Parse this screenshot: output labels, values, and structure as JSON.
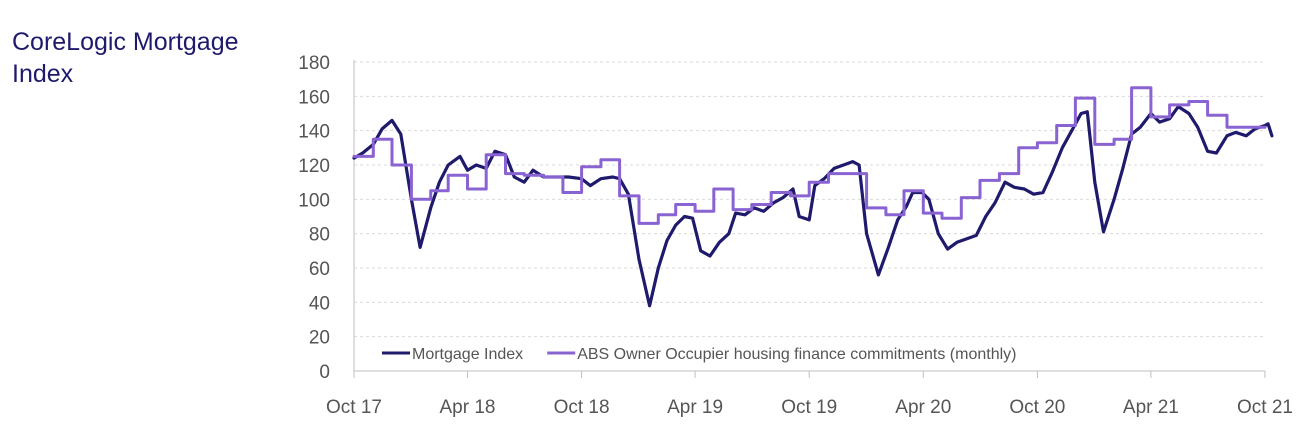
{
  "chart_data": {
    "type": "line",
    "title": "CoreLogic Mortgage Index",
    "xlabel": "",
    "ylabel": "",
    "ylim": [
      0,
      180
    ],
    "yticks": [
      0,
      20,
      40,
      60,
      80,
      100,
      120,
      140,
      160,
      180
    ],
    "xlim": [
      "2017-10",
      "2021-10"
    ],
    "xticks": [
      "Oct 17",
      "Apr 18",
      "Oct 18",
      "Apr 19",
      "Oct 19",
      "Apr 20",
      "Oct 20",
      "Apr 21",
      "Oct 21"
    ],
    "grid": true,
    "legend": "bottom-left",
    "series": [
      {
        "name": "Mortgage Index",
        "color": "#1f1a6b",
        "style": "weekly",
        "points": [
          [
            "2017-10-01",
            124
          ],
          [
            "2017-10-15",
            127
          ],
          [
            "2017-11-01",
            132
          ],
          [
            "2017-11-15",
            141
          ],
          [
            "2017-12-01",
            146
          ],
          [
            "2017-12-15",
            138
          ],
          [
            "2018-01-01",
            100
          ],
          [
            "2018-01-15",
            72
          ],
          [
            "2018-02-01",
            95
          ],
          [
            "2018-02-15",
            110
          ],
          [
            "2018-03-01",
            120
          ],
          [
            "2018-03-20",
            125
          ],
          [
            "2018-04-01",
            117
          ],
          [
            "2018-04-15",
            120
          ],
          [
            "2018-05-01",
            118
          ],
          [
            "2018-05-15",
            128
          ],
          [
            "2018-06-01",
            126
          ],
          [
            "2018-06-15",
            113
          ],
          [
            "2018-07-01",
            110
          ],
          [
            "2018-07-15",
            117
          ],
          [
            "2018-08-01",
            113
          ],
          [
            "2018-08-20",
            113
          ],
          [
            "2018-09-10",
            113
          ],
          [
            "2018-10-01",
            112
          ],
          [
            "2018-10-15",
            108
          ],
          [
            "2018-11-01",
            112
          ],
          [
            "2018-11-20",
            113
          ],
          [
            "2018-12-01",
            112
          ],
          [
            "2018-12-15",
            103
          ],
          [
            "2019-01-01",
            65
          ],
          [
            "2019-01-18",
            38
          ],
          [
            "2019-02-01",
            60
          ],
          [
            "2019-02-15",
            76
          ],
          [
            "2019-03-01",
            85
          ],
          [
            "2019-03-15",
            90
          ],
          [
            "2019-03-28",
            89
          ],
          [
            "2019-04-10",
            70
          ],
          [
            "2019-04-25",
            67
          ],
          [
            "2019-05-10",
            75
          ],
          [
            "2019-05-25",
            80
          ],
          [
            "2019-06-05",
            92
          ],
          [
            "2019-06-20",
            91
          ],
          [
            "2019-07-05",
            95
          ],
          [
            "2019-07-20",
            93
          ],
          [
            "2019-08-05",
            98
          ],
          [
            "2019-08-20",
            101
          ],
          [
            "2019-09-05",
            106
          ],
          [
            "2019-09-15",
            90
          ],
          [
            "2019-10-01",
            88
          ],
          [
            "2019-10-10",
            108
          ],
          [
            "2019-10-25",
            112
          ],
          [
            "2019-11-10",
            118
          ],
          [
            "2019-11-25",
            120
          ],
          [
            "2019-12-10",
            122
          ],
          [
            "2019-12-20",
            120
          ],
          [
            "2020-01-01",
            80
          ],
          [
            "2020-01-20",
            56
          ],
          [
            "2020-02-05",
            72
          ],
          [
            "2020-02-20",
            88
          ],
          [
            "2020-03-05",
            96
          ],
          [
            "2020-03-15",
            104
          ],
          [
            "2020-03-30",
            104
          ],
          [
            "2020-04-10",
            100
          ],
          [
            "2020-04-25",
            80
          ],
          [
            "2020-05-10",
            71
          ],
          [
            "2020-05-25",
            75
          ],
          [
            "2020-06-10",
            77
          ],
          [
            "2020-06-25",
            79
          ],
          [
            "2020-07-10",
            90
          ],
          [
            "2020-07-25",
            98
          ],
          [
            "2020-08-10",
            110
          ],
          [
            "2020-08-25",
            107
          ],
          [
            "2020-09-10",
            106
          ],
          [
            "2020-09-25",
            103
          ],
          [
            "2020-10-10",
            104
          ],
          [
            "2020-10-25",
            116
          ],
          [
            "2020-11-10",
            130
          ],
          [
            "2020-11-25",
            140
          ],
          [
            "2020-12-10",
            150
          ],
          [
            "2020-12-20",
            151
          ],
          [
            "2021-01-01",
            110
          ],
          [
            "2021-01-15",
            81
          ],
          [
            "2021-02-01",
            100
          ],
          [
            "2021-02-15",
            118
          ],
          [
            "2021-03-01",
            138
          ],
          [
            "2021-03-15",
            142
          ],
          [
            "2021-04-01",
            150
          ],
          [
            "2021-04-15",
            145
          ],
          [
            "2021-05-01",
            147
          ],
          [
            "2021-05-15",
            154
          ],
          [
            "2021-06-01",
            150
          ],
          [
            "2021-06-15",
            142
          ],
          [
            "2021-07-01",
            128
          ],
          [
            "2021-07-15",
            127
          ],
          [
            "2021-08-01",
            137
          ],
          [
            "2021-08-15",
            139
          ],
          [
            "2021-09-01",
            137
          ],
          [
            "2021-09-15",
            141
          ],
          [
            "2021-10-01",
            143
          ],
          [
            "2021-10-06",
            144
          ],
          [
            "2021-10-12",
            137
          ]
        ]
      },
      {
        "name": "ABS Owner Occupier housing finance commitments (monthly)",
        "color": "#8a63d2",
        "style": "step",
        "points": [
          [
            "2017-10",
            125
          ],
          [
            "2017-11",
            135
          ],
          [
            "2017-12",
            120
          ],
          [
            "2018-01",
            100
          ],
          [
            "2018-02",
            105
          ],
          [
            "2018-03",
            114
          ],
          [
            "2018-04",
            106
          ],
          [
            "2018-05",
            126
          ],
          [
            "2018-06",
            115
          ],
          [
            "2018-07",
            114
          ],
          [
            "2018-08",
            113
          ],
          [
            "2018-09",
            104
          ],
          [
            "2018-10",
            119
          ],
          [
            "2018-11",
            123
          ],
          [
            "2018-12",
            102
          ],
          [
            "2019-01",
            86
          ],
          [
            "2019-02",
            91
          ],
          [
            "2019-03",
            97
          ],
          [
            "2019-04",
            93
          ],
          [
            "2019-05",
            106
          ],
          [
            "2019-06",
            94
          ],
          [
            "2019-07",
            97
          ],
          [
            "2019-08",
            104
          ],
          [
            "2019-09",
            102
          ],
          [
            "2019-10",
            110
          ],
          [
            "2019-11",
            115
          ],
          [
            "2019-12",
            115
          ],
          [
            "2020-01",
            95
          ],
          [
            "2020-02",
            91
          ],
          [
            "2020-03",
            105
          ],
          [
            "2020-04",
            92
          ],
          [
            "2020-05",
            89
          ],
          [
            "2020-06",
            101
          ],
          [
            "2020-07",
            111
          ],
          [
            "2020-08",
            115
          ],
          [
            "2020-09",
            130
          ],
          [
            "2020-10",
            133
          ],
          [
            "2020-11",
            143
          ],
          [
            "2020-12",
            159
          ],
          [
            "2021-01",
            132
          ],
          [
            "2021-02",
            135
          ],
          [
            "2021-03",
            165
          ],
          [
            "2021-04",
            148
          ],
          [
            "2021-05",
            155
          ],
          [
            "2021-06",
            157
          ],
          [
            "2021-07",
            149
          ],
          [
            "2021-08",
            142
          ],
          [
            "2021-09",
            142
          ]
        ]
      }
    ]
  }
}
